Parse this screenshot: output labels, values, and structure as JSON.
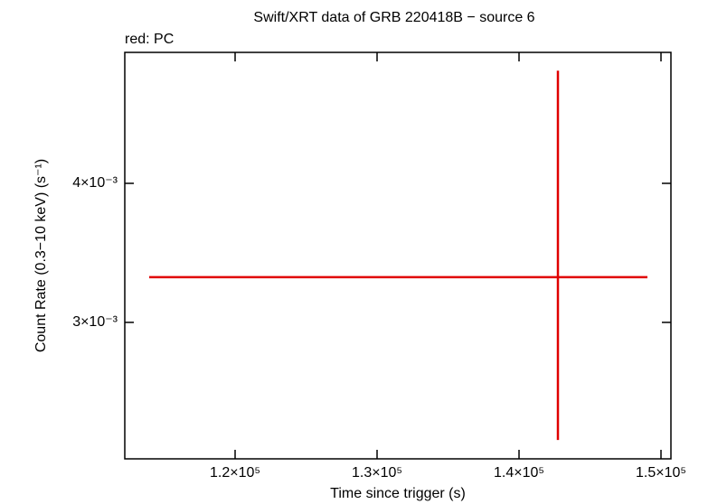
{
  "chart_data": {
    "type": "errorbar",
    "title": "Swift/XRT data of GRB 220418B − source 6",
    "annotation": "red: PC",
    "xlabel": "Time since trigger (s)",
    "ylabel": "Count Rate (0.3−10 keV) (s⁻¹)",
    "xlim": [
      112229,
      150700
    ],
    "ylim": [
      0.002262,
      0.005245
    ],
    "ylog": true,
    "xticks": [
      {
        "value": 120000,
        "label": "1.2×10⁵"
      },
      {
        "value": 130000,
        "label": "1.3×10⁵"
      },
      {
        "value": 140000,
        "label": "1.4×10⁵"
      },
      {
        "value": 150000,
        "label": "1.5×10⁵"
      }
    ],
    "yticks": [
      {
        "value": 0.003,
        "label": "3×10⁻³"
      },
      {
        "value": 0.004,
        "label": "4×10⁻³"
      }
    ],
    "series": [
      {
        "color": "#e00000",
        "x": [
          142739
        ],
        "xerr_minus": [
          28790
        ],
        "xerr_plus": [
          6306
        ],
        "values": [
          0.003294
        ],
        "yerr_minus": [
          0.000942
        ],
        "yerr_plus": [
          0.001756
        ]
      }
    ]
  }
}
